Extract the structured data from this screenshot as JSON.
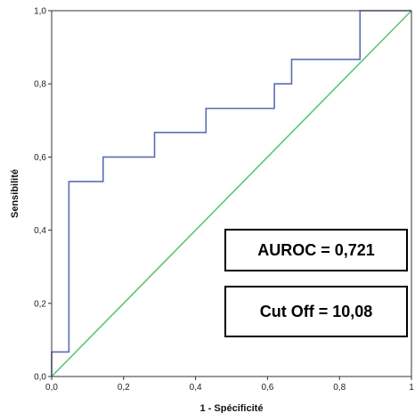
{
  "chart_data": {
    "type": "line",
    "xlabel": "1 - Spécificité",
    "ylabel": "Sensibilité",
    "xlim": [
      0,
      1
    ],
    "ylim": [
      0,
      1
    ],
    "x_ticks": [
      0,
      0.2,
      0.4,
      0.6,
      0.8,
      1
    ],
    "x_tick_labels": [
      "0,0",
      "0,2",
      "0,4",
      "0,6",
      "0,8",
      "1"
    ],
    "y_ticks": [
      0,
      0.2,
      0.4,
      0.6,
      0.8,
      1
    ],
    "y_tick_labels": [
      "0,0",
      "0,2",
      "0,4",
      "0,6",
      "0,8",
      "1,0"
    ],
    "grid": false,
    "series": [
      {
        "color": "#5b6db5",
        "x": [
          0,
          0,
          0.048,
          0.048,
          0.143,
          0.143,
          0.286,
          0.286,
          0.429,
          0.429,
          0.619,
          0.619,
          0.667,
          0.667,
          0.857,
          0.857,
          1
        ],
        "y": [
          0,
          0.067,
          0.067,
          0.533,
          0.533,
          0.6,
          0.6,
          0.667,
          0.667,
          0.733,
          0.733,
          0.8,
          0.8,
          0.867,
          0.867,
          1,
          1
        ]
      },
      {
        "color": "#5cc47a",
        "x": [
          0,
          1
        ],
        "y": [
          0,
          1
        ]
      }
    ],
    "annotations": [
      {
        "text": "AUROC = 0,721"
      },
      {
        "text": "Cut Off = 10,08"
      }
    ]
  }
}
